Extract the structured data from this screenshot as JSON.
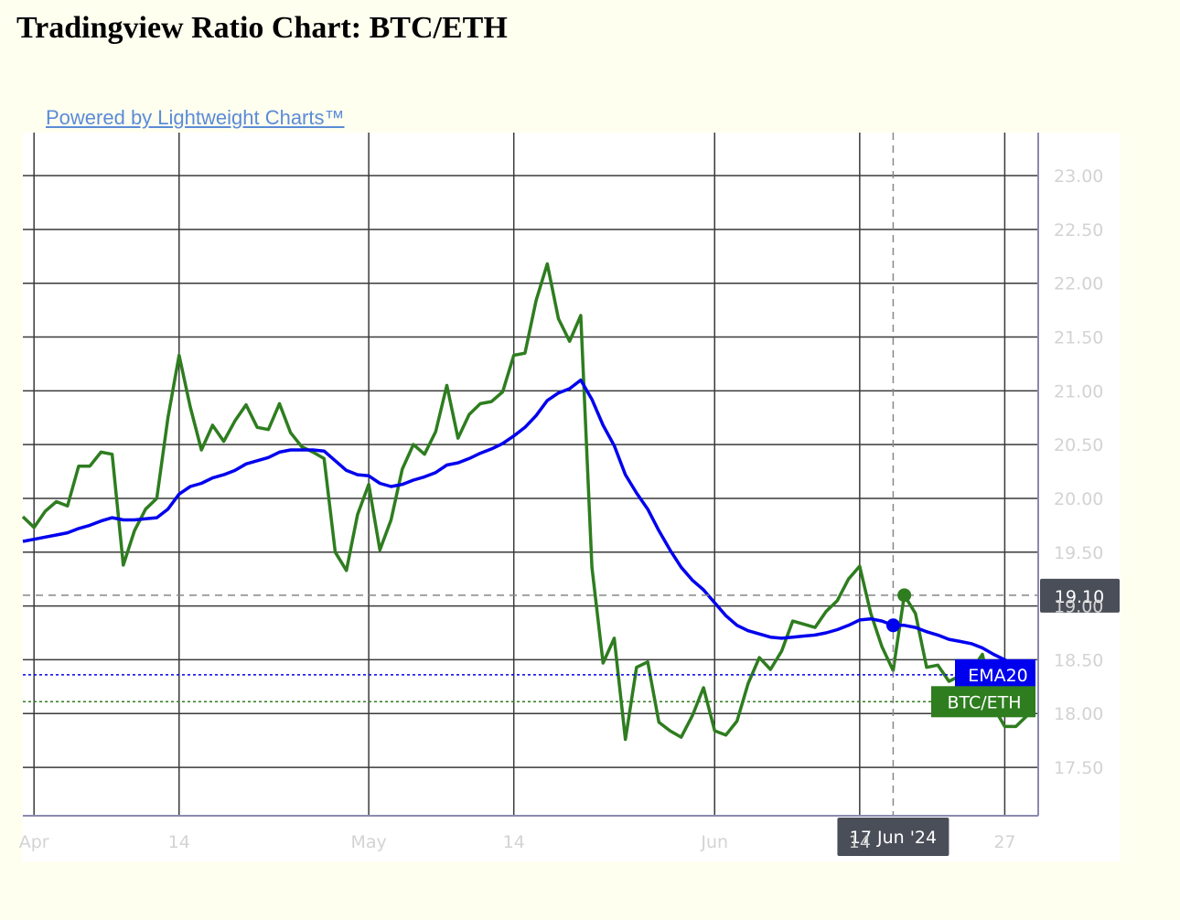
{
  "page": {
    "title": "Tradingview Ratio Chart: BTC/ETH",
    "attribution": "Powered by Lightweight Charts™"
  },
  "colors": {
    "background": "#fffff0",
    "plot_background": "#ffffff",
    "grid": "#3a3a3a",
    "axis_border": "#8a8ab0",
    "axis_text": "#d3d3d3",
    "btc_eth": "#2e7d1f",
    "ema20": "#0000ee",
    "crosshair": "#888888",
    "crosshair_label_bg": "#4a4e58"
  },
  "chart_data": {
    "type": "line",
    "title": "Tradingview Ratio Chart: BTC/ETH",
    "x_start": "2024-03-31",
    "x_end": "2024-06-30",
    "ylim": [
      17.05,
      23.4
    ],
    "y_ticks": [
      17.5,
      18.0,
      18.5,
      19.0,
      19.5,
      20.0,
      20.5,
      21.0,
      21.5,
      22.0,
      22.5,
      23.0
    ],
    "y_tick_labels": [
      "17.50",
      "18.00",
      "18.50",
      "19.00",
      "19.50",
      "20.00",
      "20.50",
      "21.00",
      "21.50",
      "22.00",
      "22.50",
      "23.00"
    ],
    "x_ticks": [
      {
        "date": "2024-04-01",
        "label": "Apr"
      },
      {
        "date": "2024-04-14",
        "label": "14"
      },
      {
        "date": "2024-05-01",
        "label": "May"
      },
      {
        "date": "2024-05-14",
        "label": "14"
      },
      {
        "date": "2024-06-01",
        "label": "Jun"
      },
      {
        "date": "2024-06-14",
        "label": "14"
      },
      {
        "date": "2024-06-27",
        "label": "27"
      }
    ],
    "grid": true,
    "crosshair": {
      "date": "2024-06-17",
      "value": 19.1,
      "x_label": "17 Jun '24",
      "y_label": "19.10"
    },
    "series": [
      {
        "name": "BTC/ETH",
        "color": "#2e7d1f",
        "last_value": 18.11,
        "label": "BTC/ETH",
        "points": [
          [
            "2024-03-31",
            19.83
          ],
          [
            "2024-04-01",
            19.73
          ],
          [
            "2024-04-02",
            19.88
          ],
          [
            "2024-04-03",
            19.97
          ],
          [
            "2024-04-04",
            19.93
          ],
          [
            "2024-04-05",
            20.3
          ],
          [
            "2024-04-06",
            20.3
          ],
          [
            "2024-04-07",
            20.43
          ],
          [
            "2024-04-08",
            20.41
          ],
          [
            "2024-04-09",
            19.38
          ],
          [
            "2024-04-10",
            19.7
          ],
          [
            "2024-04-11",
            19.9
          ],
          [
            "2024-04-12",
            20.0
          ],
          [
            "2024-04-13",
            20.75
          ],
          [
            "2024-04-14",
            21.33
          ],
          [
            "2024-04-15",
            20.85
          ],
          [
            "2024-04-16",
            20.45
          ],
          [
            "2024-04-17",
            20.68
          ],
          [
            "2024-04-18",
            20.53
          ],
          [
            "2024-04-19",
            20.72
          ],
          [
            "2024-04-20",
            20.87
          ],
          [
            "2024-04-21",
            20.66
          ],
          [
            "2024-04-22",
            20.64
          ],
          [
            "2024-04-23",
            20.88
          ],
          [
            "2024-04-24",
            20.61
          ],
          [
            "2024-04-25",
            20.48
          ],
          [
            "2024-04-26",
            20.43
          ],
          [
            "2024-04-27",
            20.37
          ],
          [
            "2024-04-28",
            19.5
          ],
          [
            "2024-04-29",
            19.33
          ],
          [
            "2024-04-30",
            19.85
          ],
          [
            "2024-05-01",
            20.13
          ],
          [
            "2024-05-02",
            19.52
          ],
          [
            "2024-05-03",
            19.8
          ],
          [
            "2024-05-04",
            20.27
          ],
          [
            "2024-05-05",
            20.5
          ],
          [
            "2024-05-06",
            20.41
          ],
          [
            "2024-05-07",
            20.62
          ],
          [
            "2024-05-08",
            21.05
          ],
          [
            "2024-05-09",
            20.56
          ],
          [
            "2024-05-10",
            20.78
          ],
          [
            "2024-05-11",
            20.88
          ],
          [
            "2024-05-12",
            20.9
          ],
          [
            "2024-05-13",
            20.99
          ],
          [
            "2024-05-14",
            21.33
          ],
          [
            "2024-05-15",
            21.35
          ],
          [
            "2024-05-16",
            21.84
          ],
          [
            "2024-05-17",
            22.18
          ],
          [
            "2024-05-18",
            21.67
          ],
          [
            "2024-05-19",
            21.46
          ],
          [
            "2024-05-20",
            21.7
          ],
          [
            "2024-05-21",
            19.36
          ],
          [
            "2024-05-22",
            18.47
          ],
          [
            "2024-05-23",
            18.7
          ],
          [
            "2024-05-24",
            17.76
          ],
          [
            "2024-05-25",
            18.43
          ],
          [
            "2024-05-26",
            18.48
          ],
          [
            "2024-05-27",
            17.92
          ],
          [
            "2024-05-28",
            17.84
          ],
          [
            "2024-05-29",
            17.78
          ],
          [
            "2024-05-30",
            17.98
          ],
          [
            "2024-05-31",
            18.24
          ],
          [
            "2024-06-01",
            17.84
          ],
          [
            "2024-06-02",
            17.8
          ],
          [
            "2024-06-03",
            17.93
          ],
          [
            "2024-06-04",
            18.28
          ],
          [
            "2024-06-05",
            18.52
          ],
          [
            "2024-06-06",
            18.41
          ],
          [
            "2024-06-07",
            18.58
          ],
          [
            "2024-06-08",
            18.86
          ],
          [
            "2024-06-09",
            18.83
          ],
          [
            "2024-06-10",
            18.8
          ],
          [
            "2024-06-11",
            18.95
          ],
          [
            "2024-06-12",
            19.05
          ],
          [
            "2024-06-13",
            19.25
          ],
          [
            "2024-06-14",
            19.37
          ],
          [
            "2024-06-15",
            18.93
          ],
          [
            "2024-06-16",
            18.62
          ],
          [
            "2024-06-17",
            18.4
          ],
          [
            "2024-06-18",
            19.1
          ],
          [
            "2024-06-19",
            18.93
          ],
          [
            "2024-06-20",
            18.43
          ],
          [
            "2024-06-21",
            18.45
          ],
          [
            "2024-06-22",
            18.3
          ],
          [
            "2024-06-23",
            18.35
          ],
          [
            "2024-06-24",
            18.4
          ],
          [
            "2024-06-25",
            18.55
          ],
          [
            "2024-06-26",
            18.06
          ],
          [
            "2024-06-27",
            17.88
          ],
          [
            "2024-06-28",
            17.88
          ],
          [
            "2024-06-29",
            17.98
          ]
        ]
      },
      {
        "name": "EMA20",
        "color": "#0000ee",
        "last_value": 18.36,
        "label": "EMA20",
        "points": [
          [
            "2024-03-31",
            19.6
          ],
          [
            "2024-04-01",
            19.62
          ],
          [
            "2024-04-02",
            19.64
          ],
          [
            "2024-04-03",
            19.66
          ],
          [
            "2024-04-04",
            19.68
          ],
          [
            "2024-04-05",
            19.72
          ],
          [
            "2024-04-06",
            19.75
          ],
          [
            "2024-04-07",
            19.79
          ],
          [
            "2024-04-08",
            19.82
          ],
          [
            "2024-04-09",
            19.8
          ],
          [
            "2024-04-10",
            19.8
          ],
          [
            "2024-04-11",
            19.81
          ],
          [
            "2024-04-12",
            19.82
          ],
          [
            "2024-04-13",
            19.9
          ],
          [
            "2024-04-14",
            20.04
          ],
          [
            "2024-04-15",
            20.11
          ],
          [
            "2024-04-16",
            20.14
          ],
          [
            "2024-04-17",
            20.19
          ],
          [
            "2024-04-18",
            20.22
          ],
          [
            "2024-04-19",
            20.26
          ],
          [
            "2024-04-20",
            20.32
          ],
          [
            "2024-04-21",
            20.35
          ],
          [
            "2024-04-22",
            20.38
          ],
          [
            "2024-04-23",
            20.43
          ],
          [
            "2024-04-24",
            20.45
          ],
          [
            "2024-04-25",
            20.45
          ],
          [
            "2024-04-26",
            20.45
          ],
          [
            "2024-04-27",
            20.44
          ],
          [
            "2024-04-28",
            20.35
          ],
          [
            "2024-04-29",
            20.26
          ],
          [
            "2024-04-30",
            20.22
          ],
          [
            "2024-05-01",
            20.21
          ],
          [
            "2024-05-02",
            20.14
          ],
          [
            "2024-05-03",
            20.11
          ],
          [
            "2024-05-04",
            20.13
          ],
          [
            "2024-05-05",
            20.17
          ],
          [
            "2024-05-06",
            20.2
          ],
          [
            "2024-05-07",
            20.24
          ],
          [
            "2024-05-08",
            20.31
          ],
          [
            "2024-05-09",
            20.33
          ],
          [
            "2024-05-10",
            20.37
          ],
          [
            "2024-05-11",
            20.42
          ],
          [
            "2024-05-12",
            20.46
          ],
          [
            "2024-05-13",
            20.51
          ],
          [
            "2024-05-14",
            20.58
          ],
          [
            "2024-05-15",
            20.66
          ],
          [
            "2024-05-16",
            20.77
          ],
          [
            "2024-05-17",
            20.91
          ],
          [
            "2024-05-18",
            20.98
          ],
          [
            "2024-05-19",
            21.02
          ],
          [
            "2024-05-20",
            21.1
          ],
          [
            "2024-05-21",
            20.92
          ],
          [
            "2024-05-22",
            20.68
          ],
          [
            "2024-05-23",
            20.49
          ],
          [
            "2024-05-24",
            20.22
          ],
          [
            "2024-05-25",
            20.05
          ],
          [
            "2024-05-26",
            19.9
          ],
          [
            "2024-05-27",
            19.7
          ],
          [
            "2024-05-28",
            19.52
          ],
          [
            "2024-05-29",
            19.36
          ],
          [
            "2024-05-30",
            19.24
          ],
          [
            "2024-05-31",
            19.15
          ],
          [
            "2024-06-01",
            19.03
          ],
          [
            "2024-06-02",
            18.91
          ],
          [
            "2024-06-03",
            18.82
          ],
          [
            "2024-06-04",
            18.77
          ],
          [
            "2024-06-05",
            18.74
          ],
          [
            "2024-06-06",
            18.71
          ],
          [
            "2024-06-07",
            18.7
          ],
          [
            "2024-06-08",
            18.71
          ],
          [
            "2024-06-09",
            18.72
          ],
          [
            "2024-06-10",
            18.73
          ],
          [
            "2024-06-11",
            18.75
          ],
          [
            "2024-06-12",
            18.78
          ],
          [
            "2024-06-13",
            18.82
          ],
          [
            "2024-06-14",
            18.87
          ],
          [
            "2024-06-15",
            18.88
          ],
          [
            "2024-06-16",
            18.86
          ],
          [
            "2024-06-17",
            18.82
          ],
          [
            "2024-06-18",
            18.82
          ],
          [
            "2024-06-19",
            18.8
          ],
          [
            "2024-06-20",
            18.76
          ],
          [
            "2024-06-21",
            18.73
          ],
          [
            "2024-06-22",
            18.69
          ],
          [
            "2024-06-23",
            18.67
          ],
          [
            "2024-06-24",
            18.65
          ],
          [
            "2024-06-25",
            18.61
          ],
          [
            "2024-06-26",
            18.55
          ],
          [
            "2024-06-27",
            18.5
          ],
          [
            "2024-06-28",
            18.45
          ],
          [
            "2024-06-29",
            18.4
          ]
        ]
      }
    ]
  }
}
